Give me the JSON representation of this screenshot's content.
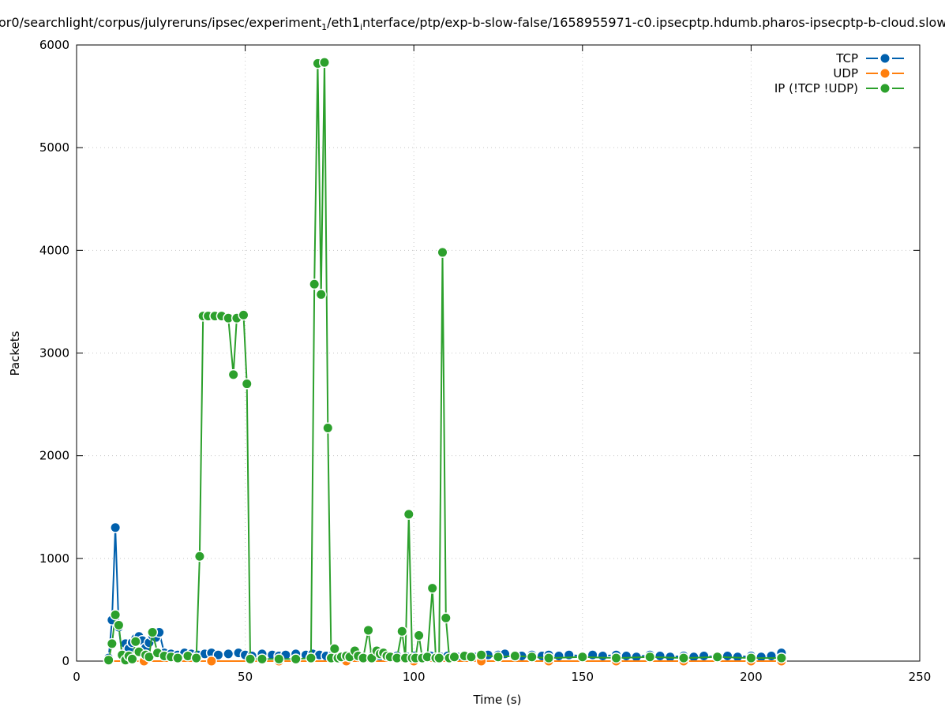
{
  "chart_data": {
    "type": "line",
    "title": {
      "part1": "or0/searchlight/corpus/julyreruns/ipsec/experiment",
      "sub1": "1",
      "part2": "/eth1",
      "sub2": "i",
      "part3": "nterface/ptp/exp-b-slow-false/1658955971-c0.ipsecptp.hdumb.pharos-ipsecptp-b-cloud.slow"
    },
    "xlabel": "Time (s)",
    "ylabel": "Packets",
    "xlim": [
      0,
      250
    ],
    "ylim": [
      0,
      6000
    ],
    "xticks": [
      0,
      50,
      100,
      150,
      200,
      250
    ],
    "yticks": [
      0,
      1000,
      2000,
      3000,
      4000,
      5000,
      6000
    ],
    "grid": true,
    "legend_position": "top-right",
    "series": [
      {
        "name": "TCP",
        "color": "#0060ad",
        "x": [
          9.5,
          10.5,
          11.5,
          12.5,
          13.5,
          14.5,
          15.5,
          16.5,
          17.5,
          18.5,
          19.5,
          20.5,
          21.5,
          22.5,
          23.5,
          24.5,
          26,
          28,
          30,
          32,
          34,
          36,
          38,
          40,
          42,
          45,
          48,
          50,
          52,
          55,
          58,
          60,
          62,
          65,
          68,
          70,
          72,
          74,
          76,
          78,
          80,
          82,
          85,
          88,
          90,
          92,
          95,
          98,
          100,
          103,
          105,
          108,
          110,
          113,
          115,
          118,
          120,
          122,
          125,
          127,
          130,
          132,
          135,
          138,
          140,
          143,
          146,
          150,
          153,
          156,
          160,
          163,
          166,
          170,
          173,
          176,
          180,
          183,
          186,
          190,
          193,
          196,
          200,
          203,
          206,
          209
        ],
        "y": [
          30,
          400,
          1300,
          330,
          60,
          170,
          120,
          180,
          220,
          240,
          200,
          130,
          180,
          250,
          230,
          280,
          80,
          70,
          60,
          80,
          70,
          60,
          70,
          80,
          60,
          70,
          80,
          60,
          50,
          70,
          60,
          50,
          60,
          70,
          60,
          70,
          60,
          50,
          60,
          40,
          30,
          50,
          40,
          60,
          50,
          40,
          50,
          40,
          50,
          40,
          50,
          40,
          50,
          40,
          60,
          40,
          50,
          60,
          60,
          70,
          60,
          50,
          60,
          50,
          60,
          50,
          60,
          50,
          60,
          50,
          60,
          50,
          40,
          60,
          50,
          40,
          50,
          40,
          50,
          40,
          50,
          40,
          50,
          40,
          50,
          80
        ]
      },
      {
        "name": "UDP",
        "color": "#ff7f0e",
        "x": [
          9.5,
          20,
          40,
          60,
          80,
          100,
          120,
          140,
          160,
          180,
          200,
          209
        ],
        "y": [
          0,
          0,
          0,
          0,
          0,
          0,
          0,
          0,
          0,
          0,
          0,
          0
        ]
      },
      {
        "name": "IP (!TCP  !UDP)",
        "color": "#2ca02c",
        "x": [
          9.5,
          10.5,
          11.5,
          12.5,
          13.5,
          14.5,
          15.5,
          16.5,
          17.5,
          18.5,
          20.5,
          21.5,
          22.5,
          24,
          26,
          28,
          30,
          33,
          35.5,
          36.5,
          37.5,
          39,
          41,
          43,
          45,
          46.5,
          47.5,
          49.5,
          50.5,
          51.5,
          55,
          60,
          65,
          69.5,
          70.5,
          71.5,
          72.5,
          73.5,
          74.5,
          75.5,
          76.5,
          77.5,
          78.5,
          80,
          81,
          82.5,
          83.5,
          85,
          86.5,
          87.5,
          89,
          90,
          91,
          92,
          93,
          95,
          96.5,
          97.5,
          98.5,
          99.5,
          100.5,
          101.5,
          102.5,
          104,
          105.5,
          106.5,
          107.5,
          108.5,
          109.5,
          110.5,
          112,
          115,
          117,
          120,
          125,
          130,
          135,
          140,
          150,
          160,
          170,
          180,
          190,
          200,
          209
        ],
        "y": [
          10,
          170,
          450,
          350,
          60,
          10,
          50,
          20,
          190,
          90,
          60,
          40,
          280,
          80,
          50,
          40,
          30,
          50,
          30,
          1020,
          3360,
          3360,
          3360,
          3360,
          3340,
          2790,
          3340,
          3370,
          2700,
          20,
          20,
          20,
          20,
          30,
          3670,
          5820,
          3570,
          5830,
          2270,
          30,
          120,
          30,
          40,
          50,
          40,
          100,
          50,
          30,
          300,
          30,
          100,
          70,
          80,
          50,
          40,
          30,
          290,
          30,
          1430,
          30,
          30,
          250,
          30,
          40,
          710,
          30,
          30,
          3980,
          420,
          30,
          40,
          50,
          40,
          60,
          40,
          50,
          40,
          30,
          40,
          30,
          40,
          30,
          40,
          30,
          30
        ]
      }
    ]
  }
}
